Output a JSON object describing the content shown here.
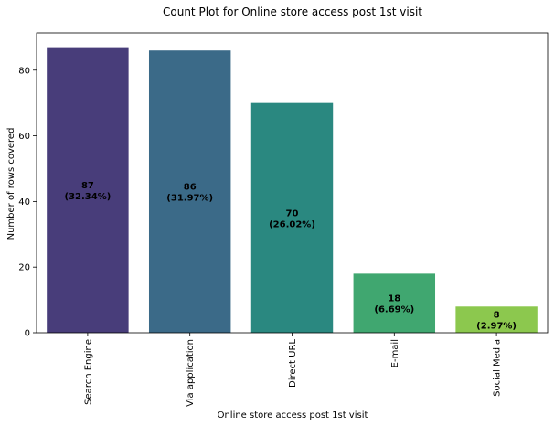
{
  "chart_data": {
    "type": "bar",
    "title": "Count Plot for Online store access post 1st visit",
    "xlabel": "Online store access post 1st visit",
    "ylabel": "Number of rows covered",
    "categories": [
      "Search Engine",
      "Via application",
      "Direct URL",
      "E-mail",
      "Social Media"
    ],
    "values": [
      87,
      86,
      70,
      18,
      8
    ],
    "percentages": [
      "32.34%",
      "31.97%",
      "26.02%",
      "6.69%",
      "2.97%"
    ],
    "ylim": [
      0,
      91.35
    ],
    "yticks": [
      0,
      20,
      40,
      60,
      80
    ],
    "grid": false,
    "legend": "none",
    "colors": [
      "#483d7a",
      "#3b6a88",
      "#2a8880",
      "#40a770",
      "#8cc84e"
    ]
  }
}
